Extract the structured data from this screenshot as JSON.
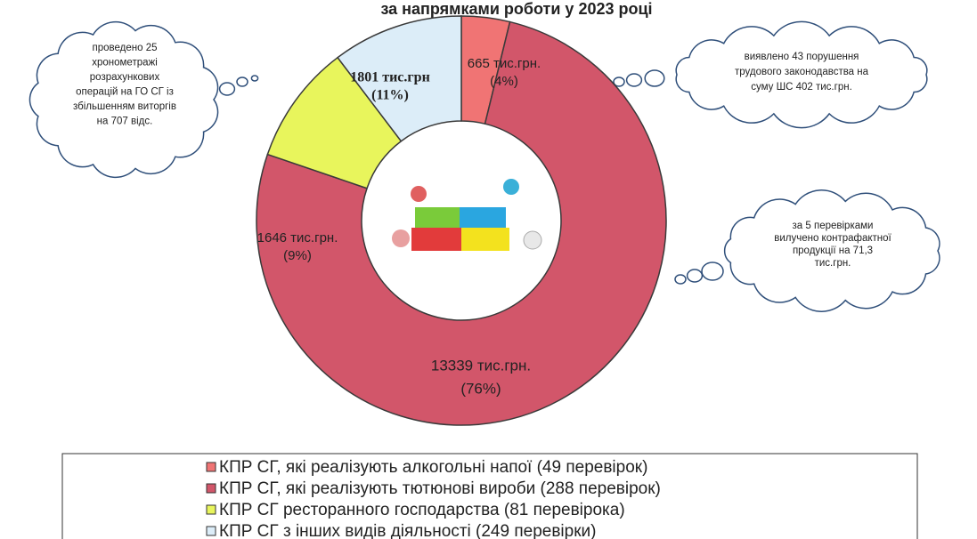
{
  "chart_data": {
    "type": "pie",
    "donut": true,
    "title": "за напрямками роботи у 2023 році",
    "categories": [
      "КПР СГ, які реалізують алкогольні напої (49 перевірок)",
      "КПР СГ, які реалізують тютюнові вироби (288 перевірок)",
      "КПР СГ ресторанного господарства (81 перевірока)",
      "КПР СГ з інших видів діяльності (249 перевірки)"
    ],
    "values": [
      665,
      13339,
      1646,
      1801
    ],
    "value_labels": [
      "665 тис.грн.",
      "13339 тис.грн.",
      "1646 тис.грн.",
      "1801 тис.грн"
    ],
    "percent_labels": [
      "(4%)",
      "(76%)",
      "(9%)",
      "(11%)"
    ],
    "colors": [
      "#f07474",
      "#d2566a",
      "#e8f55c",
      "#dcedf8"
    ],
    "annotations": [
      {
        "lines": [
          "проведено 25",
          "хронометражі",
          "розрахункових",
          "операцій на ГО СГ із",
          "збільшенням виторгів",
          "на 707 відс."
        ]
      },
      {
        "lines": [
          "виявлено  43 порушення",
          "трудового законодавства на",
          "суму ШС  402 тис.грн."
        ]
      },
      {
        "lines": [
          "за 5 перевірками",
          "вилучено контрафактної",
          "продукції на 71,3",
          "тис.грн."
        ]
      }
    ]
  }
}
